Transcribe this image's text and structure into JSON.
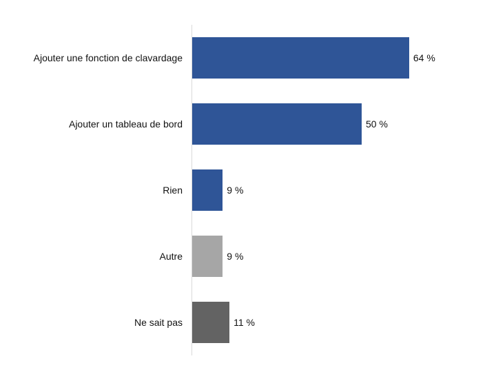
{
  "chart_data": {
    "type": "bar",
    "orientation": "horizontal",
    "title": "",
    "xlabel": "",
    "ylabel": "",
    "categories": [
      "Ajouter une fonction de clavardage",
      "Ajouter un tableau de bord",
      "Rien",
      "Autre",
      "Ne sait pas"
    ],
    "values": [
      64,
      50,
      9,
      9,
      11
    ],
    "value_labels": [
      "64 %",
      "50 %",
      "9 %",
      "9 %",
      "11 %"
    ],
    "colors": [
      "#2f5597",
      "#2f5597",
      "#2f5597",
      "#a6a6a6",
      "#636363"
    ],
    "xlim": [
      0,
      100
    ],
    "grid": false,
    "legend": null
  },
  "rows": [
    {
      "label": "Ajouter une fonction de clavardage",
      "value": 64,
      "value_label": "64 %",
      "color": "#2f5597"
    },
    {
      "label": "Ajouter un tableau de bord",
      "value": 50,
      "value_label": "50 %",
      "color": "#2f5597"
    },
    {
      "label": "Rien",
      "value": 9,
      "value_label": "9 %",
      "color": "#2f5597"
    },
    {
      "label": "Autre",
      "value": 9,
      "value_label": "9 %",
      "color": "#a6a6a6"
    },
    {
      "label": "Ne sait pas",
      "value": 11,
      "value_label": "11 %",
      "color": "#636363"
    }
  ]
}
